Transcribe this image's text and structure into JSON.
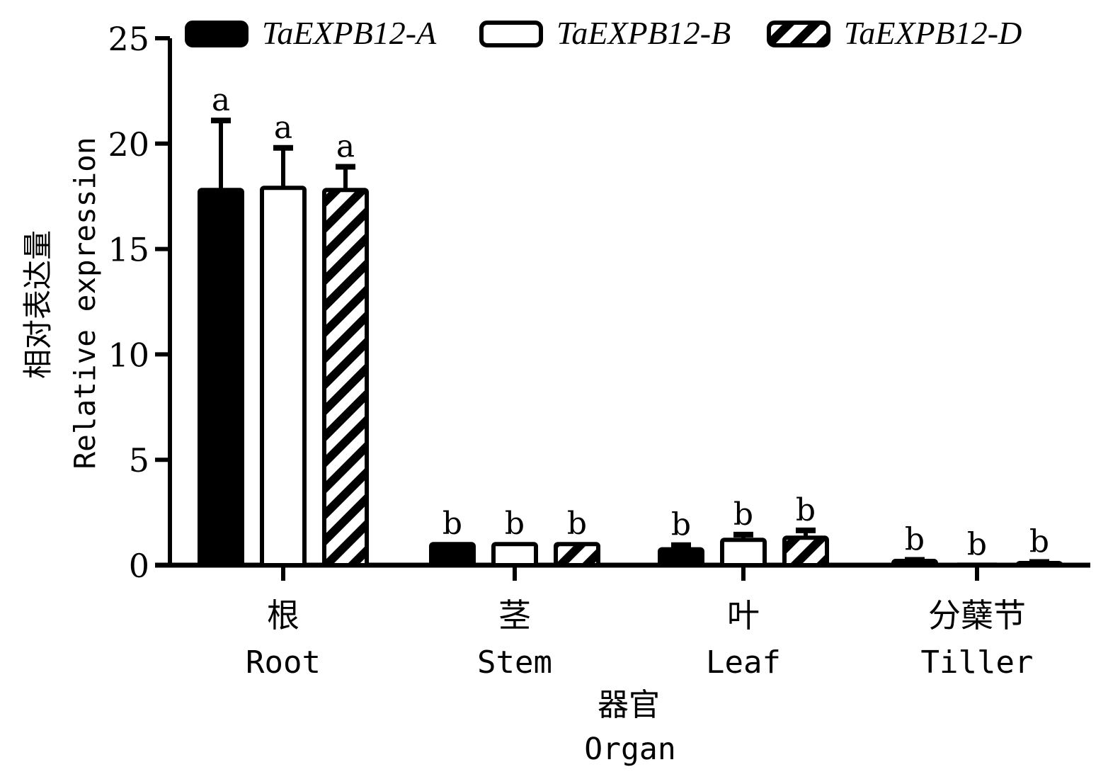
{
  "chart_data": {
    "type": "bar",
    "categories": [
      {
        "cn": "根",
        "en": "Root"
      },
      {
        "cn": "茎",
        "en": "Stem"
      },
      {
        "cn": "叶",
        "en": "Leaf"
      },
      {
        "cn": "分蘖节",
        "en": "Tiller"
      }
    ],
    "series": [
      {
        "name": "TaEXPB12-A",
        "fill": "solid",
        "values": [
          17.8,
          1.0,
          0.75,
          0.2
        ],
        "errors": [
          3.3,
          0.0,
          0.2,
          0.05
        ],
        "letters": [
          "a",
          "b",
          "b",
          "b"
        ]
      },
      {
        "name": "TaEXPB12-B",
        "fill": "open",
        "values": [
          17.9,
          1.0,
          1.2,
          0.02
        ],
        "errors": [
          1.9,
          0.0,
          0.25,
          0.0
        ],
        "letters": [
          "a",
          "b",
          "b",
          "b"
        ]
      },
      {
        "name": "TaEXPB12-D",
        "fill": "hatched",
        "values": [
          17.8,
          1.0,
          1.3,
          0.1
        ],
        "errors": [
          1.1,
          0.0,
          0.35,
          0.05
        ],
        "letters": [
          "a",
          "b",
          "b",
          "b"
        ]
      }
    ],
    "ylabel_cn": "相对表达量",
    "ylabel_en": "Relative expression",
    "xlabel_cn": "器官",
    "xlabel_en": "Organ",
    "ylim": [
      0,
      25
    ],
    "yticks": [
      0,
      5,
      10,
      15,
      20,
      25
    ],
    "legend_position": "top",
    "grid": false,
    "colors": {
      "bar": "#000000",
      "background": "#ffffff"
    }
  }
}
